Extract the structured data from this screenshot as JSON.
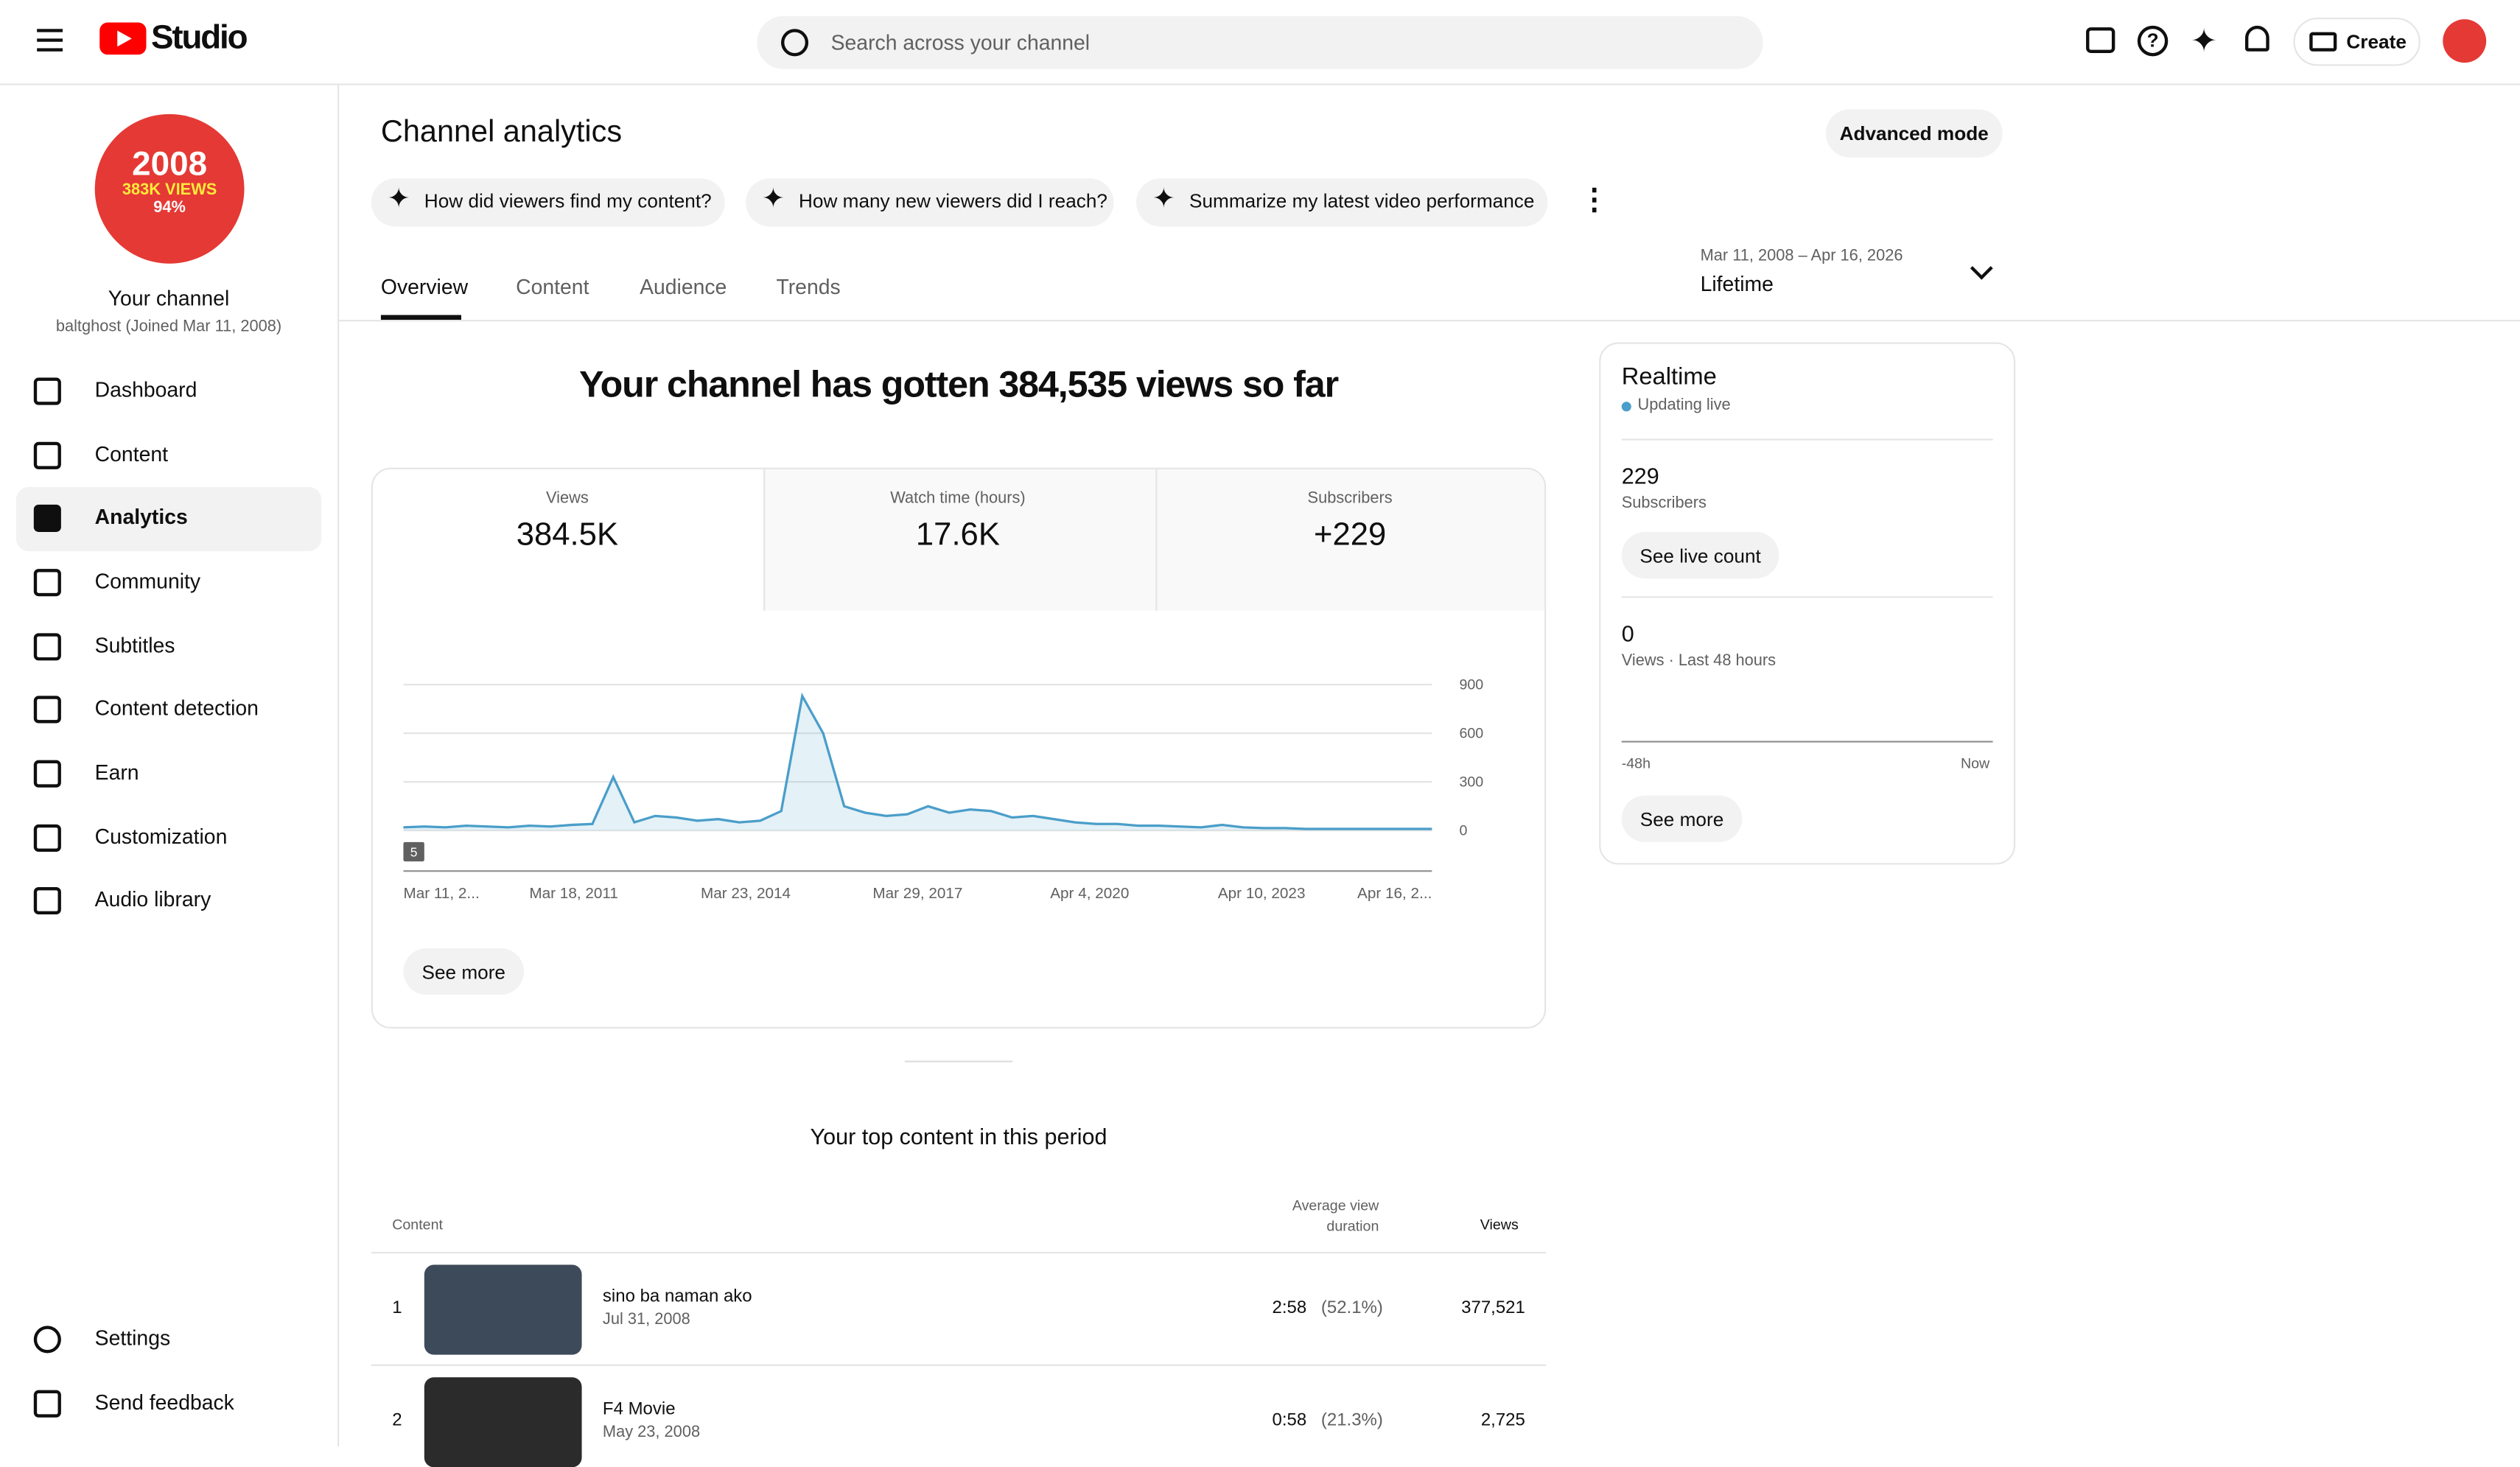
{
  "header": {
    "brand": "Studio",
    "search_placeholder": "Search across your channel",
    "create": "Create"
  },
  "sidebar": {
    "avatar": {
      "line1": "2008",
      "line2": "383K VIEWS",
      "line3": "94%"
    },
    "channel_title": "Your channel",
    "channel_sub": "baltghost (Joined Mar 11, 2008)",
    "nav": [
      "Dashboard",
      "Content",
      "Analytics",
      "Community",
      "Subtitles",
      "Content detection",
      "Earn",
      "Customization",
      "Audio library"
    ],
    "footer_nav": [
      "Settings",
      "Send feedback"
    ]
  },
  "page": {
    "title": "Channel analytics",
    "advanced": "Advanced mode",
    "prompts": [
      "How did viewers find my content?",
      "How many new viewers did I reach?",
      "Summarize my latest video performance"
    ],
    "tabs": [
      "Overview",
      "Content",
      "Audience",
      "Trends"
    ],
    "date_range": "Mar 11, 2008 – Apr 16, 2026",
    "period": "Lifetime"
  },
  "summary": {
    "headline": "Your channel has gotten 384,535 views so far",
    "metrics": [
      {
        "label": "Views",
        "value": "384.5K"
      },
      {
        "label": "Watch time (hours)",
        "value": "17.6K"
      },
      {
        "label": "Subscribers",
        "value": "+229"
      }
    ],
    "see_more": "See more"
  },
  "chart_data": {
    "type": "line",
    "color": "#4a9ec9",
    "badge": "5",
    "ylim": [
      -250,
      900
    ],
    "yticks": [
      0,
      300,
      600,
      900
    ],
    "grid": true,
    "xtick_labels": [
      "Mar 11, 2...",
      "Mar 18, 2011",
      "Mar 23, 2014",
      "Mar 29, 2017",
      "Apr 4, 2020",
      "Apr 10, 2023",
      "Apr 16, 2..."
    ],
    "values": [
      20,
      25,
      20,
      30,
      25,
      20,
      30,
      25,
      35,
      40,
      330,
      50,
      90,
      80,
      60,
      70,
      50,
      60,
      120,
      830,
      600,
      150,
      110,
      90,
      100,
      150,
      110,
      130,
      120,
      80,
      90,
      70,
      50,
      40,
      40,
      30,
      30,
      25,
      20,
      35,
      20,
      15,
      15,
      10,
      10,
      10,
      10,
      10,
      10,
      10
    ]
  },
  "realtime": {
    "title": "Realtime",
    "status": "Updating live",
    "subs_value": "229",
    "subs_label": "Subscribers",
    "live_btn": "See live count",
    "views_value": "0",
    "views_label": "Views · Last 48 hours",
    "axis_start": "-48h",
    "axis_end": "Now",
    "see_more": "See more"
  },
  "top_content": {
    "title": "Your top content in this period",
    "columns": [
      "Content",
      "Average view duration",
      "Views"
    ],
    "rows": [
      {
        "rank": "1",
        "title": "sino ba naman ako",
        "date": "Jul 31, 2008",
        "duration": "2:58",
        "percent": "(52.1%)",
        "views": "377,521"
      },
      {
        "rank": "2",
        "title": "F4 Movie",
        "date": "May 23, 2008",
        "duration": "0:58",
        "percent": "(21.3%)",
        "views": "2,725"
      }
    ]
  }
}
